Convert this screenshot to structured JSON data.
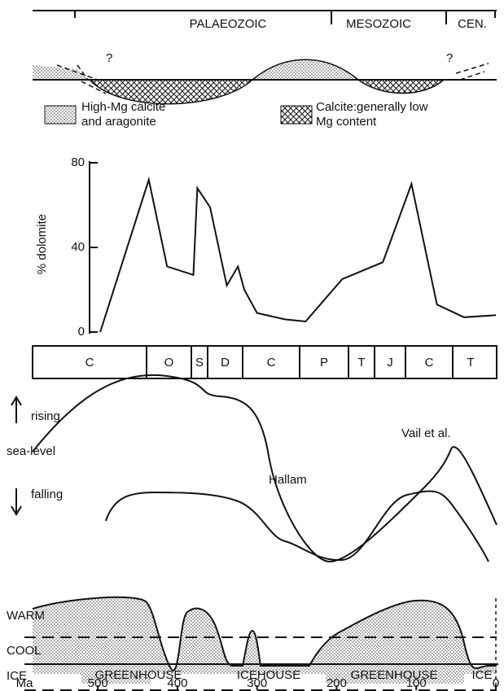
{
  "chart_data": {
    "type": "line",
    "y_label": "% dolomite",
    "x_label": "Ma",
    "x": [
      497,
      436,
      413,
      380,
      375,
      359,
      338,
      324,
      316,
      300,
      265,
      239,
      193,
      142,
      106,
      74,
      40,
      0
    ],
    "values": [
      0,
      72,
      31,
      27,
      68,
      59,
      22,
      31,
      20,
      9,
      6,
      5,
      25,
      33,
      70,
      13,
      7,
      8
    ],
    "xlim": [
      582,
      0
    ],
    "ylim": [
      0,
      80
    ],
    "yticks": [
      0,
      40,
      80
    ],
    "xticks": [
      500,
      400,
      300,
      200,
      100,
      0
    ],
    "color": "#111"
  },
  "eras": [
    "PALAEOZOIC",
    "MESOZOIC",
    "CEN."
  ],
  "question_marks": [
    "?",
    "?"
  ],
  "legend": [
    [
      "High-Mg calcite",
      "and aragonite"
    ],
    [
      "Calcite:generally low",
      "Mg content"
    ]
  ],
  "periods": [
    "C",
    "O",
    "S",
    "D",
    "C",
    "P",
    "T",
    "J",
    "C",
    "T"
  ],
  "sea_level": {
    "rising": "rising",
    "label": "sea-level",
    "falling": "falling",
    "curves": [
      "Hallam",
      "Vail et al."
    ]
  },
  "climate": {
    "levels": [
      "WARM",
      "COOL",
      "ICE"
    ],
    "states": [
      "GREENHOUSE",
      "ICEHOUSE",
      "GREENHOUSE",
      "ICE"
    ]
  }
}
